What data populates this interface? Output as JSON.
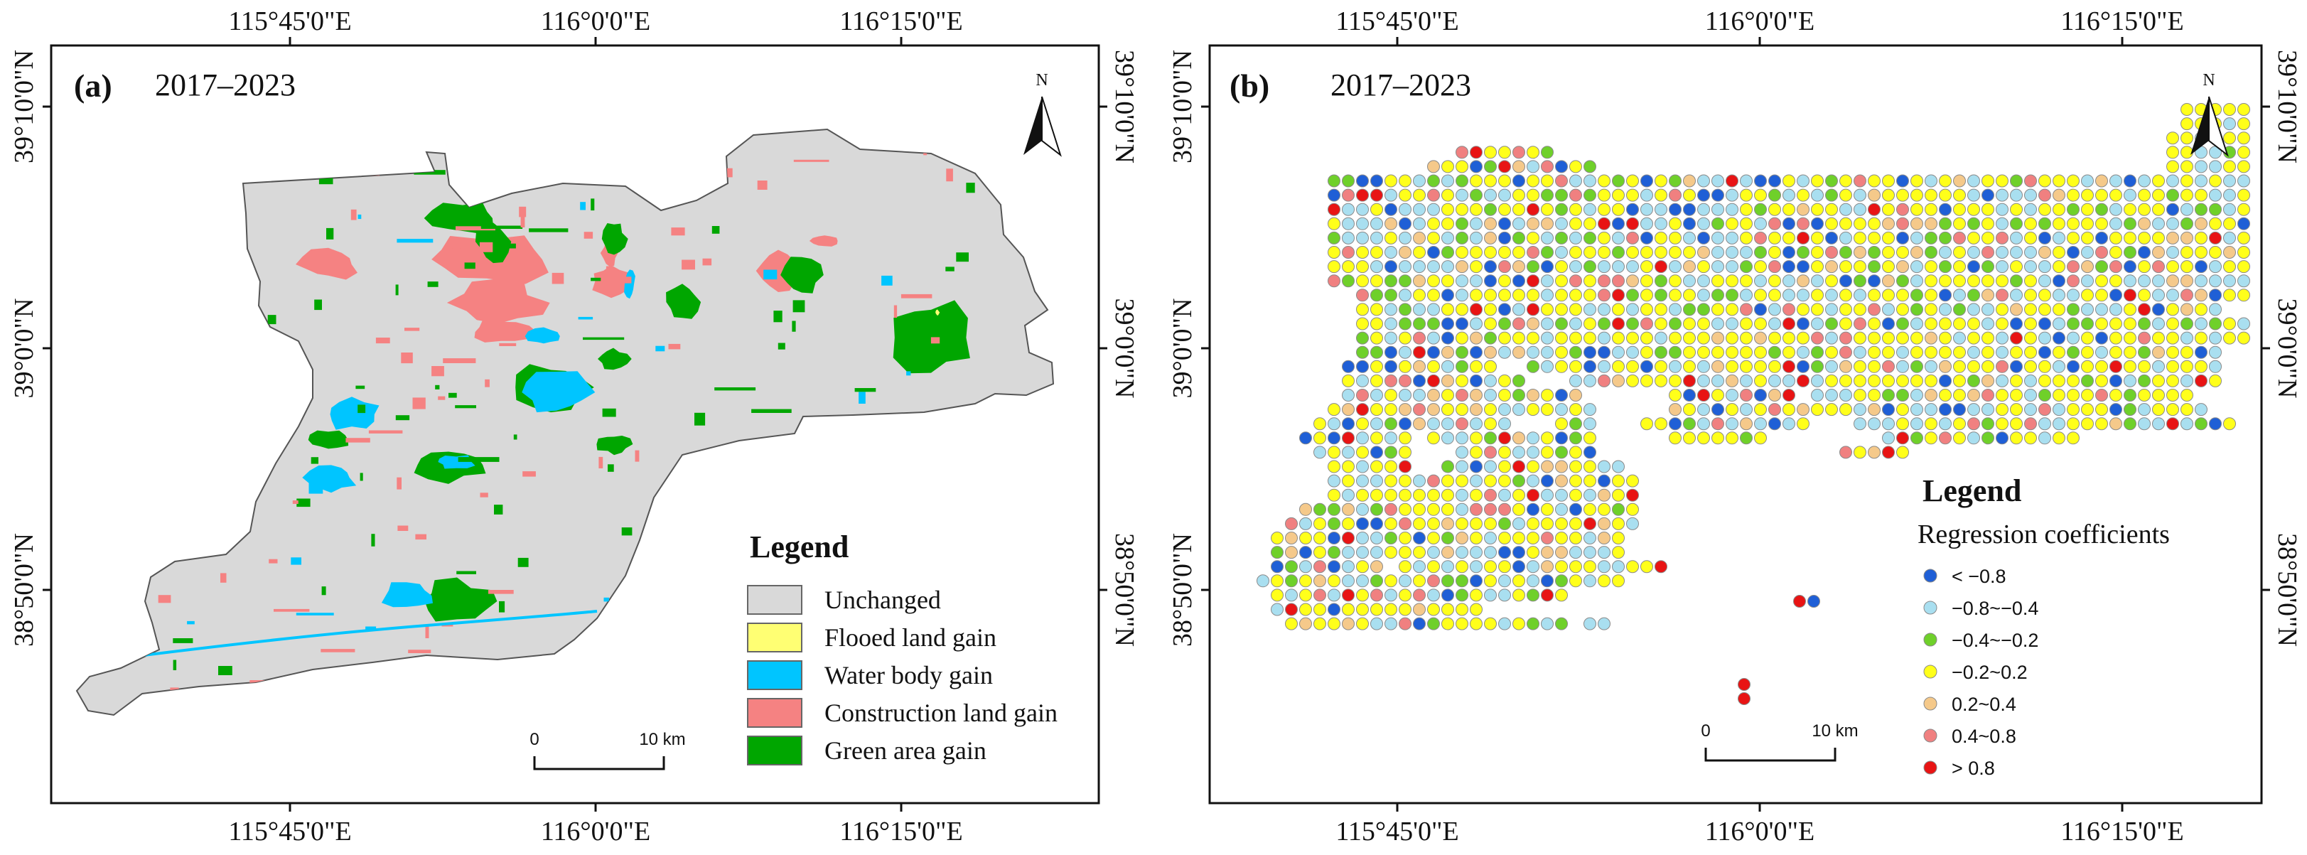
{
  "panels": [
    {
      "id": "a",
      "letter": "(a)",
      "period": "2017–2023",
      "top_lon": [
        "115°45'0\"E",
        "116°0'0\"E",
        "116°15'0\"E"
      ],
      "bottom_lon": [
        "115°45'0\"E",
        "116°0'0\"E",
        "116°15'0\"E"
      ],
      "left_lat": [
        "39°10'0\"N",
        "39°0'0\"N",
        "38°50'0\"N"
      ],
      "right_lat": [
        "39°10'0\"N",
        "39°0'0\"N",
        "38°50'0\"N"
      ],
      "north_label": "N",
      "scale": {
        "start": "0",
        "end": "10 km"
      },
      "legend": {
        "title": "Legend",
        "items": [
          {
            "label": "Unchanged",
            "color": "#d9d9d9"
          },
          {
            "label": "Flooed land gain",
            "color": "#ffff73"
          },
          {
            "label": "Water body gain",
            "color": "#00c5ff"
          },
          {
            "label": "Construction land gain",
            "color": "#f58282"
          },
          {
            "label": "Green area gain",
            "color": "#00a600"
          }
        ]
      }
    },
    {
      "id": "b",
      "letter": "(b)",
      "period": "2017–2023",
      "top_lon": [
        "115°45'0\"E",
        "116°0'0\"E",
        "116°15'0\"E"
      ],
      "bottom_lon": [
        "115°45'0\"E",
        "116°0'0\"E",
        "116°15'0\"E"
      ],
      "left_lat": [
        "39°10'0\"N",
        "39°0'0\"N",
        "38°50'0\"N"
      ],
      "right_lat": [
        "39°10'0\"N",
        "39°0'0\"N",
        "38°50'0\"N"
      ],
      "north_label": "N",
      "scale": {
        "start": "0",
        "end": "10 km"
      },
      "legend": {
        "title": "Legend",
        "subtitle": "Regression coefficients",
        "items": [
          {
            "label": "< −0.8",
            "color": "#1f5fd6"
          },
          {
            "label": "−0.8~−0.4",
            "color": "#a9dff0"
          },
          {
            "label": "−0.4~−0.2",
            "color": "#6fd02a"
          },
          {
            "label": "−0.2~0.2",
            "color": "#ffff1a"
          },
          {
            "label": "0.2~0.4",
            "color": "#f5c98a"
          },
          {
            "label": "0.4~0.8",
            "color": "#f08080"
          },
          {
            "label": "> 0.8",
            "color": "#e81414"
          }
        ]
      }
    }
  ],
  "colors": {
    "frame": "#111111",
    "map_outline": "#555555",
    "dot_stroke": "#8a8a8a"
  }
}
